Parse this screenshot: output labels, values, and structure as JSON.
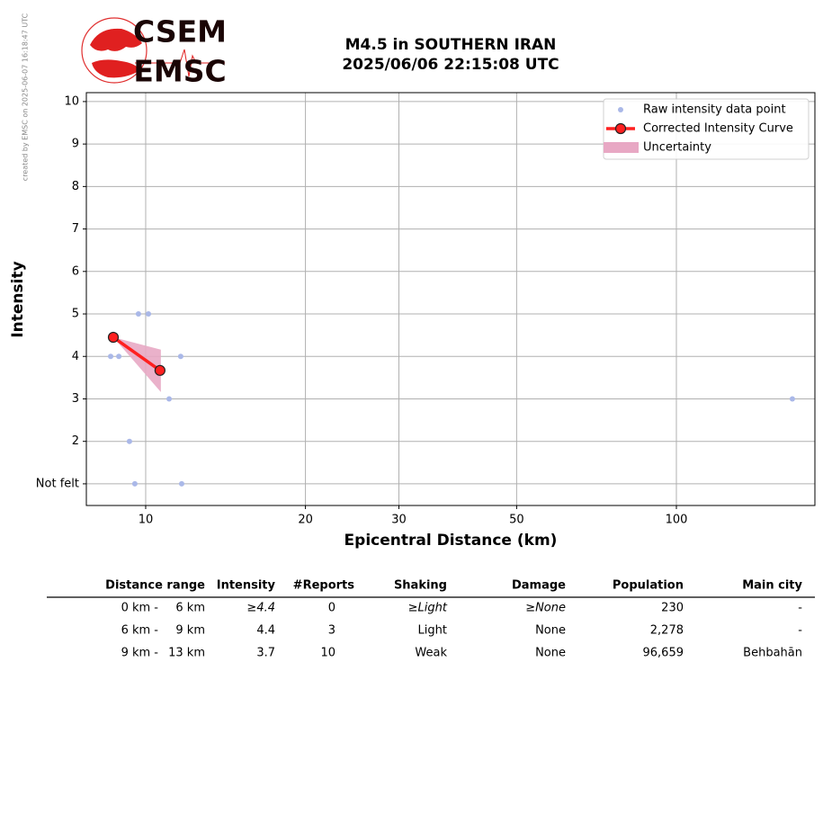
{
  "credit": "created by EMSC on 2025-06-07 16:18:47 UTC",
  "logo": {
    "top": "CSEM",
    "bottom": "EMSC"
  },
  "chart_data": {
    "type": "scatter",
    "title": "M4.5 in SOUTHERN IRAN",
    "subtitle": "2025/06/06 22:15:08 UTC",
    "xlabel": "Epicentral Distance (km)",
    "ylabel": "Intensity",
    "xscale": "log",
    "grid": true,
    "legend": "upper right",
    "xlim": [
      7.73,
      182.4
    ],
    "ylim": [
      0.49,
      10.21
    ],
    "xticks": [
      10,
      20,
      30,
      50,
      100
    ],
    "yticks": [
      {
        "value": 1,
        "label": "Not felt"
      },
      2,
      3,
      4,
      5,
      6,
      7,
      8,
      9,
      10
    ],
    "series": [
      {
        "name": "Raw intensity data point",
        "kind": "points",
        "color": "#aab8e8",
        "x": [
          9.69,
          10.12,
          8.59,
          8.9,
          11.64,
          11.07,
          165.4,
          9.32,
          9.54,
          11.69
        ],
        "values": [
          5,
          5,
          4,
          4,
          4,
          3,
          3,
          2,
          1,
          1
        ]
      },
      {
        "name": "Corrected Intensity Curve",
        "kind": "line",
        "color": "#ff2020",
        "x": [
          8.69,
          10.64
        ],
        "values": [
          4.45,
          3.67
        ]
      },
      {
        "name": "Uncertainty",
        "kind": "band",
        "color": "#e8a8c4",
        "x": [
          8.69,
          10.68
        ],
        "upper": [
          4.45,
          4.16
        ],
        "lower": [
          4.45,
          3.16
        ]
      }
    ]
  },
  "table": {
    "columns": [
      "Distance range",
      "Intensity",
      "#Reports",
      "Shaking",
      "Damage",
      "Population",
      "Main city"
    ],
    "rows": [
      [
        "0 km -",
        "6 km",
        "≥4.4",
        "0",
        "≥Light",
        "≥None",
        "230",
        "-"
      ],
      [
        "6 km -",
        "9 km",
        "4.4",
        "3",
        "Light",
        "None",
        "2,278",
        "-"
      ],
      [
        "9 km -",
        "13 km",
        "3.7",
        "10",
        "Weak",
        "None",
        "96,659",
        "Behbahān"
      ]
    ]
  }
}
